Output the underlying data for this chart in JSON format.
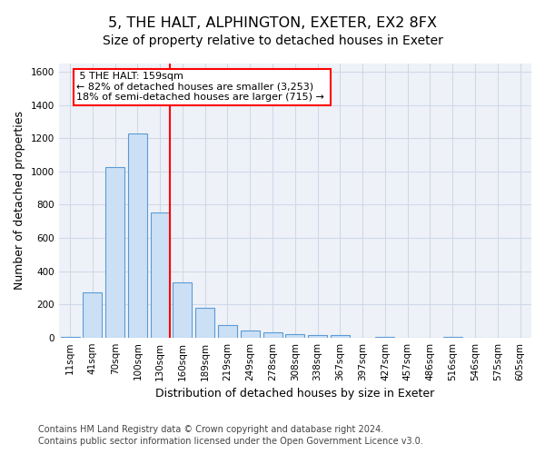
{
  "title": "5, THE HALT, ALPHINGTON, EXETER, EX2 8FX",
  "subtitle": "Size of property relative to detached houses in Exeter",
  "xlabel": "Distribution of detached houses by size in Exeter",
  "ylabel": "Number of detached properties",
  "footer1": "Contains HM Land Registry data © Crown copyright and database right 2024.",
  "footer2": "Contains public sector information licensed under the Open Government Licence v3.0.",
  "bin_labels": [
    "11sqm",
    "41sqm",
    "70sqm",
    "100sqm",
    "130sqm",
    "160sqm",
    "189sqm",
    "219sqm",
    "249sqm",
    "278sqm",
    "308sqm",
    "338sqm",
    "367sqm",
    "397sqm",
    "427sqm",
    "457sqm",
    "486sqm",
    "516sqm",
    "546sqm",
    "575sqm",
    "605sqm"
  ],
  "bar_values": [
    5,
    270,
    1025,
    1230,
    755,
    330,
    180,
    75,
    40,
    30,
    20,
    15,
    15,
    0,
    5,
    0,
    0,
    5,
    0,
    0,
    0
  ],
  "bar_color": "#cce0f5",
  "bar_edgecolor": "#5b9bd5",
  "red_line_x": 4.45,
  "annotation_text_line1": "5 THE HALT: 159sqm",
  "annotation_text_line2": "← 82% of detached houses are smaller (3,253)",
  "annotation_text_line3": "18% of semi-detached houses are larger (715) →",
  "marker_color": "red",
  "ylim": [
    0,
    1650
  ],
  "yticks": [
    0,
    200,
    400,
    600,
    800,
    1000,
    1200,
    1400,
    1600
  ],
  "bg_color": "#eef2f8",
  "grid_color": "#d0d8e8",
  "title_fontsize": 11.5,
  "subtitle_fontsize": 10,
  "axis_label_fontsize": 9,
  "tick_fontsize": 7.5,
  "footer_fontsize": 7,
  "annotation_fontsize": 8
}
